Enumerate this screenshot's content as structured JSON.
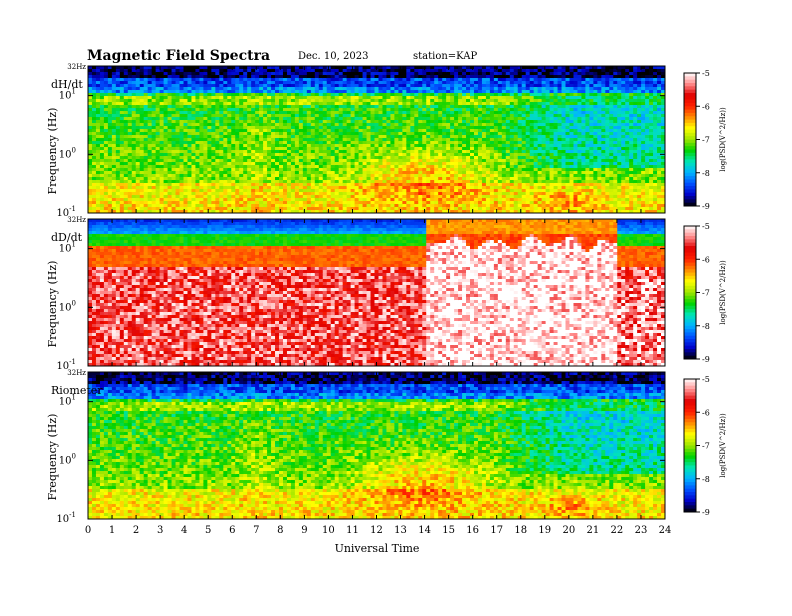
{
  "header": {
    "title": "Magnetic  Field  Spectra",
    "date": "Dec. 10, 2023",
    "station": "station=KAP"
  },
  "colors": {
    "cmap": [
      "#000000",
      "#0000c8",
      "#0050ff",
      "#00b4ff",
      "#00e6b4",
      "#00d200",
      "#a0e600",
      "#ffff00",
      "#ff8c00",
      "#ff2000",
      "#e00000",
      "#ff8a8a",
      "#ffffff"
    ]
  },
  "chart_data": [
    {
      "type": "heatmap",
      "panel_label": "dH/dt",
      "ylabel": "Frequency  (Hz)",
      "top_label": "32Hz",
      "y_ticks": [
        {
          "exp": "1",
          "value": 10
        },
        {
          "exp": "0",
          "value": 1
        },
        {
          "exp": "-1",
          "value": 0.1
        }
      ],
      "x_range": [
        0,
        24
      ],
      "y_range": [
        0.1,
        32
      ],
      "log_y": true,
      "colorbar": {
        "ticks": [
          "-5",
          "-6",
          "-7",
          "-8",
          "-9"
        ],
        "range": [
          -9,
          -5
        ],
        "label": "log(PSD(V^2/Hz))"
      }
    },
    {
      "type": "heatmap",
      "panel_label": "dD/dt",
      "ylabel": "Frequency  (Hz)",
      "top_label": "32Hz",
      "y_ticks": [
        {
          "exp": "1",
          "value": 10
        },
        {
          "exp": "0",
          "value": 1
        },
        {
          "exp": "-1",
          "value": 0.1
        }
      ],
      "x_range": [
        0,
        24
      ],
      "y_range": [
        0.1,
        32
      ],
      "log_y": true,
      "colorbar": {
        "ticks": [
          "-5",
          "-6",
          "-7",
          "-8",
          "-9"
        ],
        "range": [
          -9,
          -5
        ],
        "label": "log(PSD(V^2/Hz))"
      }
    },
    {
      "type": "heatmap",
      "panel_label": "Riometer",
      "ylabel": "Frequency  (Hz)",
      "top_label": "32Hz",
      "y_ticks": [
        {
          "exp": "1",
          "value": 10
        },
        {
          "exp": "0",
          "value": 1
        },
        {
          "exp": "-1",
          "value": 0.1
        }
      ],
      "x_range": [
        0,
        24
      ],
      "y_range": [
        0.1,
        32
      ],
      "log_y": true,
      "colorbar": {
        "ticks": [
          "-5",
          "-6",
          "-7",
          "-8",
          "-9"
        ],
        "range": [
          -9,
          -5
        ],
        "label": "log(PSD(V^2/Hz))"
      }
    }
  ],
  "x_axis": {
    "ticks": [
      "0",
      "1",
      "2",
      "3",
      "4",
      "5",
      "6",
      "7",
      "8",
      "9",
      "10",
      "11",
      "12",
      "13",
      "14",
      "15",
      "16",
      "17",
      "18",
      "19",
      "20",
      "21",
      "22",
      "23",
      "24"
    ],
    "xlabel": "Universal  Time"
  }
}
